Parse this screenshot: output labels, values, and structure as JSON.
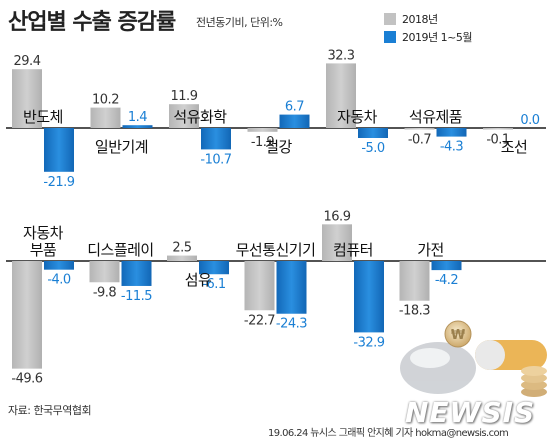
{
  "title": "산업별 수출 증감률",
  "unit": "전년동기비, 단위:%",
  "legend": [
    {
      "label": "2018년",
      "color": "#c2c2c2"
    },
    {
      "label": "2019년 1~5월",
      "color": "#1a7fd4"
    }
  ],
  "chart_data": [
    {
      "type": "bar",
      "series": [
        {
          "name": "2018년"
        },
        {
          "name": "2019년 1~5월"
        }
      ],
      "categories": [
        {
          "label": "반도체",
          "v2018": 29.4,
          "v2019": -21.9
        },
        {
          "label": "일반기계",
          "v2018": 10.2,
          "v2019": 1.4
        },
        {
          "label": "석유화학",
          "v2018": 11.9,
          "v2019": -10.7
        },
        {
          "label": "철강",
          "v2018": -1.9,
          "v2019": 6.7
        },
        {
          "label": "자동차",
          "v2018": 32.3,
          "v2019": -5.0
        },
        {
          "label": "석유제품",
          "v2018": -0.7,
          "v2019": -4.3
        },
        {
          "label": "조선",
          "v2018": -0.1,
          "v2019": 0.0
        }
      ]
    },
    {
      "type": "bar",
      "series": [
        {
          "name": "2018년"
        },
        {
          "name": "2019년 1~5월"
        }
      ],
      "categories": [
        {
          "label": "자동차\n부품",
          "v2018": -49.6,
          "v2019": -4.0
        },
        {
          "label": "디스플레이",
          "v2018": -9.8,
          "v2019": -11.5
        },
        {
          "label": "섬유",
          "v2018": 2.5,
          "v2019": -6.1
        },
        {
          "label": "무선통신기기",
          "v2018": -22.7,
          "v2019": -24.3
        },
        {
          "label": "컴퓨터",
          "v2018": 16.9,
          "v2019": -32.9
        },
        {
          "label": "가전",
          "v2018": -18.3,
          "v2019": -4.2
        }
      ]
    }
  ],
  "source": "자료: 한국무역협회",
  "credit": "19.06.24 뉴시스 그래픽 안지혜 기자  hokma@newsis.com",
  "logo": "NEWSIS"
}
